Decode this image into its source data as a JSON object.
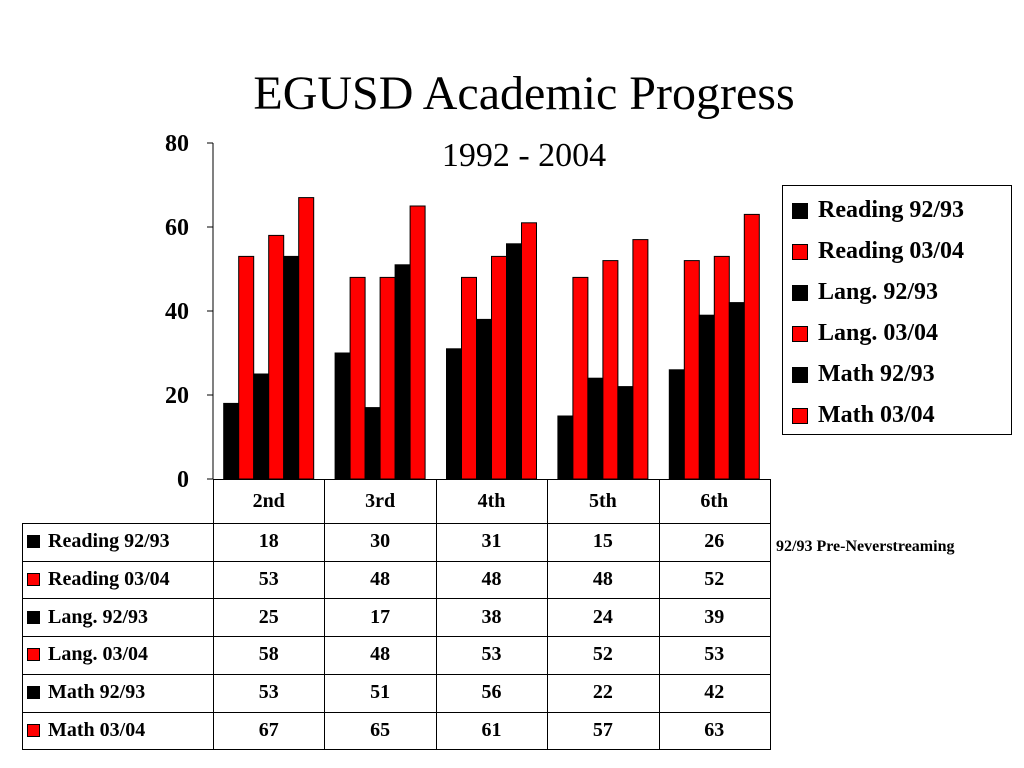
{
  "chart_data": {
    "type": "bar",
    "title": "EGUSD Academic Progress",
    "subtitle": "1992 - 2004",
    "categories": [
      "2nd",
      "3rd",
      "4th",
      "5th",
      "6th"
    ],
    "series": [
      {
        "name": "Reading 92/93",
        "color": "#000000",
        "values": [
          18,
          30,
          31,
          15,
          26
        ]
      },
      {
        "name": "Reading 03/04",
        "color": "#ff0000",
        "values": [
          53,
          48,
          48,
          48,
          52
        ]
      },
      {
        "name": "Lang. 92/93",
        "color": "#000000",
        "values": [
          25,
          17,
          38,
          24,
          39
        ]
      },
      {
        "name": "Lang. 03/04",
        "color": "#ff0000",
        "values": [
          58,
          48,
          53,
          52,
          53
        ]
      },
      {
        "name": "Math 92/93",
        "color": "#000000",
        "values": [
          53,
          51,
          56,
          22,
          42
        ]
      },
      {
        "name": "Math 03/04",
        "color": "#ff0000",
        "values": [
          67,
          65,
          61,
          57,
          63
        ]
      }
    ],
    "ylim": [
      0,
      80
    ],
    "yticks": [
      0,
      20,
      40,
      60,
      80
    ],
    "legend_position": "right",
    "grid": false,
    "data_table": true,
    "note": "92/93 Pre-Neverstreaming"
  }
}
